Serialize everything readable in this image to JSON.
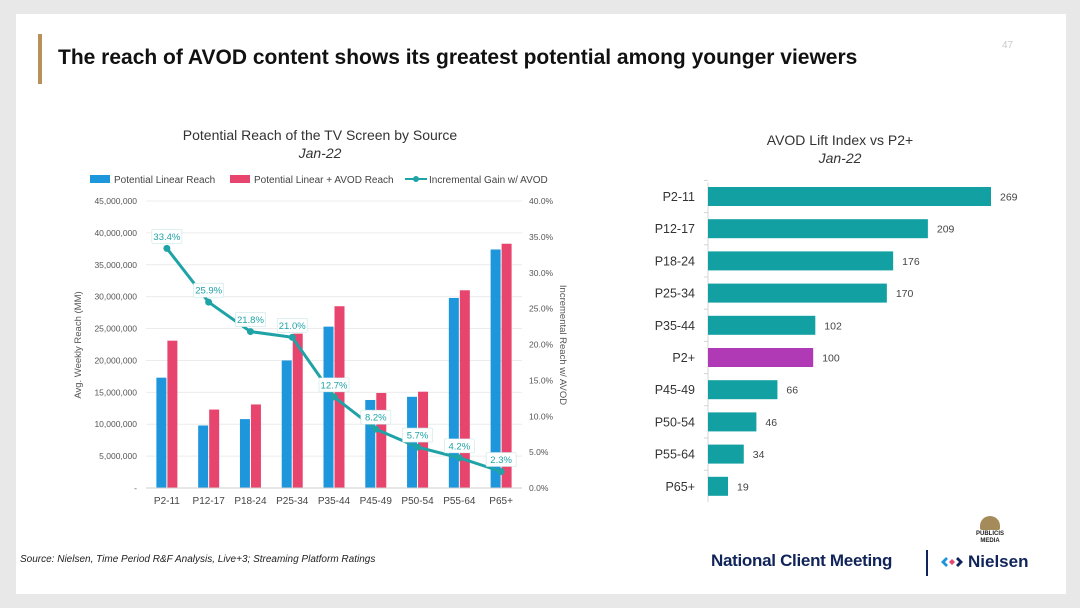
{
  "title": "The reach of AVOD content shows its greatest potential among younger viewers",
  "page_number": "47",
  "source": "Source: Nielsen, Time Period R&F Analysis, Live+3; Streaming Platform Ratings",
  "footer": {
    "meeting": "National Client Meeting",
    "brand": "Nielsen",
    "publicis_line1": "PUBLICIS",
    "publicis_line2": "MEDIA"
  },
  "colors": {
    "linear": "#1e96dc",
    "avod": "#e8456e",
    "gain": "#1fa3a6",
    "lift_bar": "#12a0a2",
    "lift_highlight": "#b03ab6",
    "title_accent": "#b8905a"
  },
  "chart_data": [
    {
      "type": "bar",
      "title": "Potential Reach of the TV Screen by Source",
      "subtitle": "Jan-22",
      "ylabel": "Avg. Weekly Reach (MM)",
      "y2label": "Incremental Reach w/ AVOD",
      "categories": [
        "P2-11",
        "P12-17",
        "P18-24",
        "P25-34",
        "P35-44",
        "P45-49",
        "P50-54",
        "P55-64",
        "P65+"
      ],
      "ylim": [
        0,
        45000000
      ],
      "y2lim": [
        0,
        40
      ],
      "y_ticks": [
        "-",
        "5,000,000",
        "10,000,000",
        "15,000,000",
        "20,000,000",
        "25,000,000",
        "30,000,000",
        "35,000,000",
        "40,000,000",
        "45,000,000"
      ],
      "y2_ticks": [
        "0.0%",
        "5.0%",
        "10.0%",
        "15.0%",
        "20.0%",
        "25.0%",
        "30.0%",
        "35.0%",
        "40.0%"
      ],
      "legend_position": "top",
      "series": [
        {
          "name": "Potential Linear Reach",
          "kind": "bar",
          "values": [
            17300000,
            9800000,
            10800000,
            20000000,
            25300000,
            13800000,
            14300000,
            29800000,
            37400000
          ]
        },
        {
          "name": "Potential Linear + AVOD Reach",
          "kind": "bar",
          "values": [
            23100000,
            12300000,
            13100000,
            24200000,
            28500000,
            14900000,
            15100000,
            31000000,
            38300000
          ]
        },
        {
          "name": "Incremental Gain w/ AVOD",
          "kind": "line",
          "axis": "right",
          "values": [
            33.4,
            25.9,
            21.8,
            21.0,
            12.7,
            8.2,
            5.7,
            4.2,
            2.3
          ],
          "labels": [
            "33.4%",
            "25.9%",
            "21.8%",
            "21.0%",
            "12.7%",
            "8.2%",
            "5.7%",
            "4.2%",
            "2.3%"
          ]
        }
      ]
    },
    {
      "type": "bar",
      "orientation": "horizontal",
      "title": "AVOD Lift Index vs P2+",
      "subtitle": "Jan-22",
      "categories": [
        "P2-11",
        "P12-17",
        "P18-24",
        "P25-34",
        "P35-44",
        "P2+",
        "P45-49",
        "P50-54",
        "P55-64",
        "P65+"
      ],
      "values": [
        269,
        209,
        176,
        170,
        102,
        100,
        66,
        46,
        34,
        19
      ],
      "highlight": "P2+"
    }
  ]
}
